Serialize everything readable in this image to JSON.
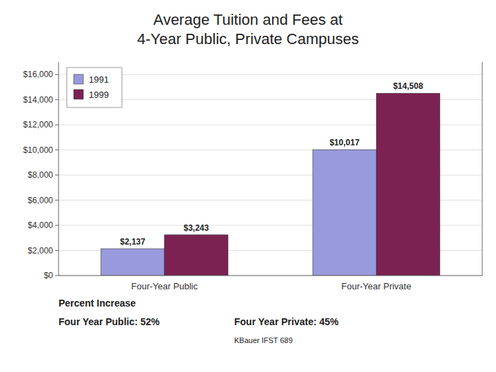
{
  "chart_data": {
    "type": "bar",
    "title": "Average Tuition and Fees at",
    "subtitle": "4-Year Public, Private Campuses",
    "categories": [
      "Four-Year Public",
      "Four-Year Private"
    ],
    "series": [
      {
        "name": "1991",
        "color": "#9999DD",
        "values": [
          2137,
          10017
        ],
        "value_labels": [
          "$2,137",
          "$10,017"
        ]
      },
      {
        "name": "1999",
        "color": "#7B2252",
        "values": [
          3243,
          14508
        ],
        "value_labels": [
          "$3,243",
          "$14,508"
        ]
      }
    ],
    "ylim": [
      0,
      17000
    ],
    "yticks": [
      {
        "value": 0,
        "label": "$0"
      },
      {
        "value": 2000,
        "label": "$2,000"
      },
      {
        "value": 4000,
        "label": "$4,000"
      },
      {
        "value": 6000,
        "label": "$6,000"
      },
      {
        "value": 8000,
        "label": "$8,000"
      },
      {
        "value": 10000,
        "label": "$10,000"
      },
      {
        "value": 12000,
        "label": "$12,000"
      },
      {
        "value": 14000,
        "label": "$14,000"
      },
      {
        "value": 16000,
        "label": "$16,000"
      }
    ],
    "grid": true,
    "legend": "upper left",
    "data_labels": true,
    "annotations": [
      "Percent Increase",
      "Four Year Public: 52%",
      "Four Year Private: 45%",
      "KBauer IFST 689"
    ]
  }
}
